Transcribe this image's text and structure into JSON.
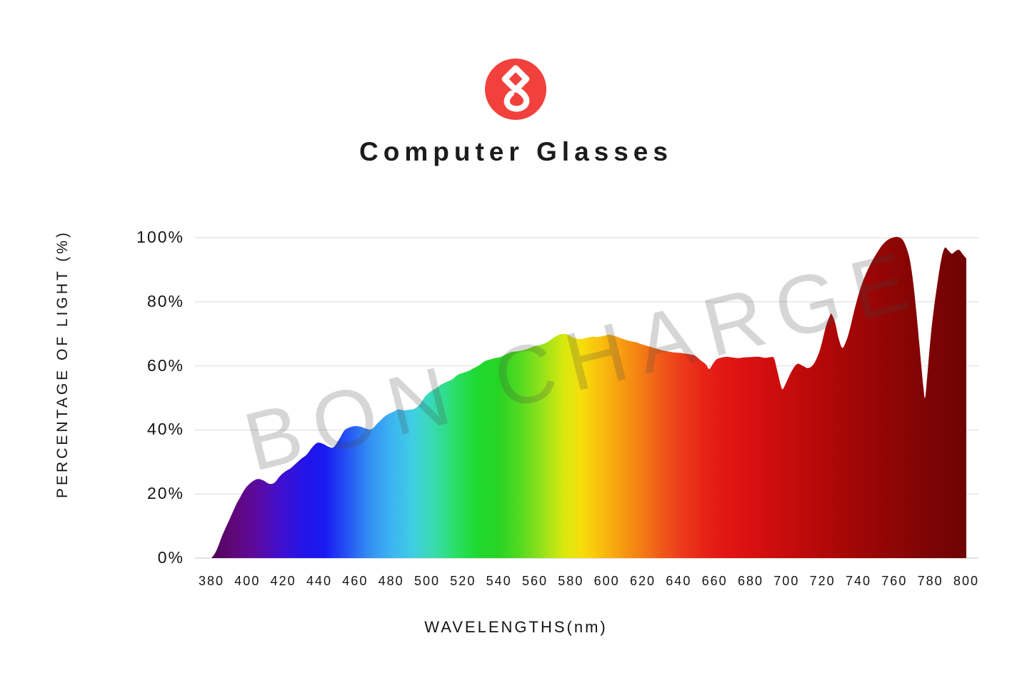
{
  "header": {
    "logo_icon": "bon-charge-logo",
    "title": "Computer Glasses"
  },
  "watermark": {
    "text": "BON CHARGE"
  },
  "colors": {
    "logo_red": "#F2413C",
    "logo_glyph": "#FFFFFF",
    "text": "#1A1A1A",
    "gridline": "#E7E7E7",
    "axis_line": "#DCDCDC",
    "watermark": "rgba(70,70,70,0.22)"
  },
  "chart_data": {
    "type": "area",
    "title": "Computer Glasses",
    "xlabel": "WAVELENGTHS(nm)",
    "ylabel": "PERCENTAGE OF LIGHT (%)",
    "xlim": [
      380,
      800
    ],
    "ylim": [
      0,
      100
    ],
    "grid": true,
    "legend": "none",
    "x_ticks": [
      380,
      400,
      420,
      440,
      460,
      480,
      500,
      520,
      540,
      560,
      580,
      600,
      620,
      640,
      660,
      680,
      700,
      720,
      740,
      760,
      780,
      800
    ],
    "y_ticks": [
      {
        "label": "0%",
        "value": 0
      },
      {
        "label": "20%",
        "value": 20
      },
      {
        "label": "40%",
        "value": 40
      },
      {
        "label": "60%",
        "value": 60
      },
      {
        "label": "80%",
        "value": 80
      },
      {
        "label": "100%",
        "value": 100
      }
    ],
    "series": [
      {
        "name": "light-transmission-percent",
        "points": [
          [
            380,
            0
          ],
          [
            382,
            1.5
          ],
          [
            384,
            4
          ],
          [
            386,
            7
          ],
          [
            388,
            9.5
          ],
          [
            390,
            12
          ],
          [
            392,
            14.5
          ],
          [
            394,
            17
          ],
          [
            396,
            19
          ],
          [
            398,
            21
          ],
          [
            400,
            22.5
          ],
          [
            403,
            24
          ],
          [
            406,
            24.7
          ],
          [
            409,
            24.2
          ],
          [
            412,
            23.2
          ],
          [
            415,
            23.5
          ],
          [
            418,
            25.5
          ],
          [
            421,
            27
          ],
          [
            424,
            28
          ],
          [
            427,
            29.5
          ],
          [
            430,
            31
          ],
          [
            433,
            32.3
          ],
          [
            436,
            34.5
          ],
          [
            439,
            36
          ],
          [
            442,
            35.7
          ],
          [
            445,
            34.8
          ],
          [
            448,
            34.6
          ],
          [
            451,
            37
          ],
          [
            454,
            39.8
          ],
          [
            457,
            40.8
          ],
          [
            460,
            41.2
          ],
          [
            463,
            41
          ],
          [
            466,
            40.4
          ],
          [
            469,
            40.2
          ],
          [
            472,
            41.8
          ],
          [
            475,
            43.5
          ],
          [
            478,
            44.8
          ],
          [
            481,
            45.6
          ],
          [
            484,
            46.4
          ],
          [
            487,
            46.1
          ],
          [
            490,
            46.3
          ],
          [
            493,
            46.6
          ],
          [
            496,
            48
          ],
          [
            499,
            50.5
          ],
          [
            502,
            52
          ],
          [
            505,
            53
          ],
          [
            508,
            54.2
          ],
          [
            511,
            55
          ],
          [
            514,
            55.8
          ],
          [
            517,
            57.2
          ],
          [
            520,
            57.8
          ],
          [
            523,
            58.4
          ],
          [
            526,
            59.3
          ],
          [
            529,
            60.2
          ],
          [
            532,
            61.4
          ],
          [
            535,
            62
          ],
          [
            538,
            62.4
          ],
          [
            541,
            62.8
          ],
          [
            544,
            63.6
          ],
          [
            547,
            64.3
          ],
          [
            550,
            64.5
          ],
          [
            553,
            64.8
          ],
          [
            556,
            65.3
          ],
          [
            559,
            66
          ],
          [
            562,
            66.4
          ],
          [
            565,
            66.9
          ],
          [
            568,
            67.8
          ],
          [
            571,
            69
          ],
          [
            574,
            69.8
          ],
          [
            577,
            69.9
          ],
          [
            580,
            69.2
          ],
          [
            583,
            68.5
          ],
          [
            586,
            68.4
          ],
          [
            589,
            68.8
          ],
          [
            592,
            69.1
          ],
          [
            595,
            69
          ],
          [
            598,
            69.3
          ],
          [
            601,
            69.7
          ],
          [
            604,
            69.4
          ],
          [
            607,
            68.8
          ],
          [
            610,
            68.2
          ],
          [
            613,
            67.7
          ],
          [
            616,
            67.4
          ],
          [
            619,
            66.8
          ],
          [
            622,
            66.3
          ],
          [
            625,
            65.8
          ],
          [
            628,
            65.3
          ],
          [
            631,
            64.8
          ],
          [
            634,
            64.5
          ],
          [
            637,
            64.2
          ],
          [
            640,
            64.1
          ],
          [
            643,
            63.9
          ],
          [
            646,
            63.6
          ],
          [
            649,
            63.2
          ],
          [
            652,
            61.8
          ],
          [
            655,
            60.5
          ],
          [
            657,
            59
          ],
          [
            659,
            60.6
          ],
          [
            661,
            62
          ],
          [
            664,
            62.6
          ],
          [
            667,
            62.8
          ],
          [
            670,
            62.6
          ],
          [
            673,
            62.4
          ],
          [
            676,
            62.6
          ],
          [
            679,
            62.7
          ],
          [
            682,
            62.8
          ],
          [
            685,
            62.8
          ],
          [
            688,
            62.5
          ],
          [
            691,
            62.7
          ],
          [
            693,
            62.4
          ],
          [
            695,
            58
          ],
          [
            697,
            53.5
          ],
          [
            698,
            52.8
          ],
          [
            700,
            55
          ],
          [
            703,
            58.5
          ],
          [
            706,
            60.6
          ],
          [
            709,
            60
          ],
          [
            712,
            59.3
          ],
          [
            715,
            60.5
          ],
          [
            718,
            64
          ],
          [
            720,
            68
          ],
          [
            722,
            72.5
          ],
          [
            724,
            75.5
          ],
          [
            725,
            76.2
          ],
          [
            727,
            73.5
          ],
          [
            729,
            68.5
          ],
          [
            731,
            65.6
          ],
          [
            733,
            67.5
          ],
          [
            735,
            71
          ],
          [
            738,
            78
          ],
          [
            741,
            84
          ],
          [
            744,
            88.5
          ],
          [
            747,
            92
          ],
          [
            750,
            95
          ],
          [
            753,
            97.5
          ],
          [
            756,
            99.2
          ],
          [
            759,
            100
          ],
          [
            762,
            100.2
          ],
          [
            765,
            99
          ],
          [
            768,
            94.5
          ],
          [
            770,
            88
          ],
          [
            772,
            78
          ],
          [
            774,
            66
          ],
          [
            776,
            54
          ],
          [
            777,
            50
          ],
          [
            778,
            55
          ],
          [
            780,
            68
          ],
          [
            782,
            78
          ],
          [
            784,
            86
          ],
          [
            786,
            93
          ],
          [
            788,
            96.8
          ],
          [
            790,
            96
          ],
          [
            792,
            95
          ],
          [
            794,
            95.8
          ],
          [
            796,
            96.2
          ],
          [
            798,
            94.8
          ],
          [
            800,
            93.5
          ]
        ]
      }
    ],
    "spectral_gradient": [
      {
        "nm": 380,
        "color": "#4E0457"
      },
      {
        "nm": 392,
        "color": "#61077A"
      },
      {
        "nm": 405,
        "color": "#5C0A9E"
      },
      {
        "nm": 418,
        "color": "#4110CE"
      },
      {
        "nm": 432,
        "color": "#2314E8"
      },
      {
        "nm": 443,
        "color": "#1A1AF2"
      },
      {
        "nm": 455,
        "color": "#2450F3"
      },
      {
        "nm": 468,
        "color": "#3390F3"
      },
      {
        "nm": 480,
        "color": "#3DB3F1"
      },
      {
        "nm": 492,
        "color": "#40CEE4"
      },
      {
        "nm": 504,
        "color": "#37DBAE"
      },
      {
        "nm": 516,
        "color": "#2ADF66"
      },
      {
        "nm": 528,
        "color": "#1FD92F"
      },
      {
        "nm": 540,
        "color": "#28D424"
      },
      {
        "nm": 552,
        "color": "#55DA20"
      },
      {
        "nm": 564,
        "color": "#94E11A"
      },
      {
        "nm": 576,
        "color": "#D8E90F"
      },
      {
        "nm": 586,
        "color": "#F6DE0B"
      },
      {
        "nm": 596,
        "color": "#F8C00D"
      },
      {
        "nm": 606,
        "color": "#F7A211"
      },
      {
        "nm": 618,
        "color": "#F58014"
      },
      {
        "nm": 630,
        "color": "#F15A19"
      },
      {
        "nm": 642,
        "color": "#EC3A1A"
      },
      {
        "nm": 654,
        "color": "#E72317"
      },
      {
        "nm": 666,
        "color": "#E11614"
      },
      {
        "nm": 678,
        "color": "#DA1111"
      },
      {
        "nm": 692,
        "color": "#CE0E0E"
      },
      {
        "nm": 706,
        "color": "#C10B0B"
      },
      {
        "nm": 722,
        "color": "#B10808"
      },
      {
        "nm": 740,
        "color": "#A00606"
      },
      {
        "nm": 758,
        "color": "#900505"
      },
      {
        "nm": 778,
        "color": "#7E0404"
      },
      {
        "nm": 800,
        "color": "#6E0303"
      }
    ]
  }
}
